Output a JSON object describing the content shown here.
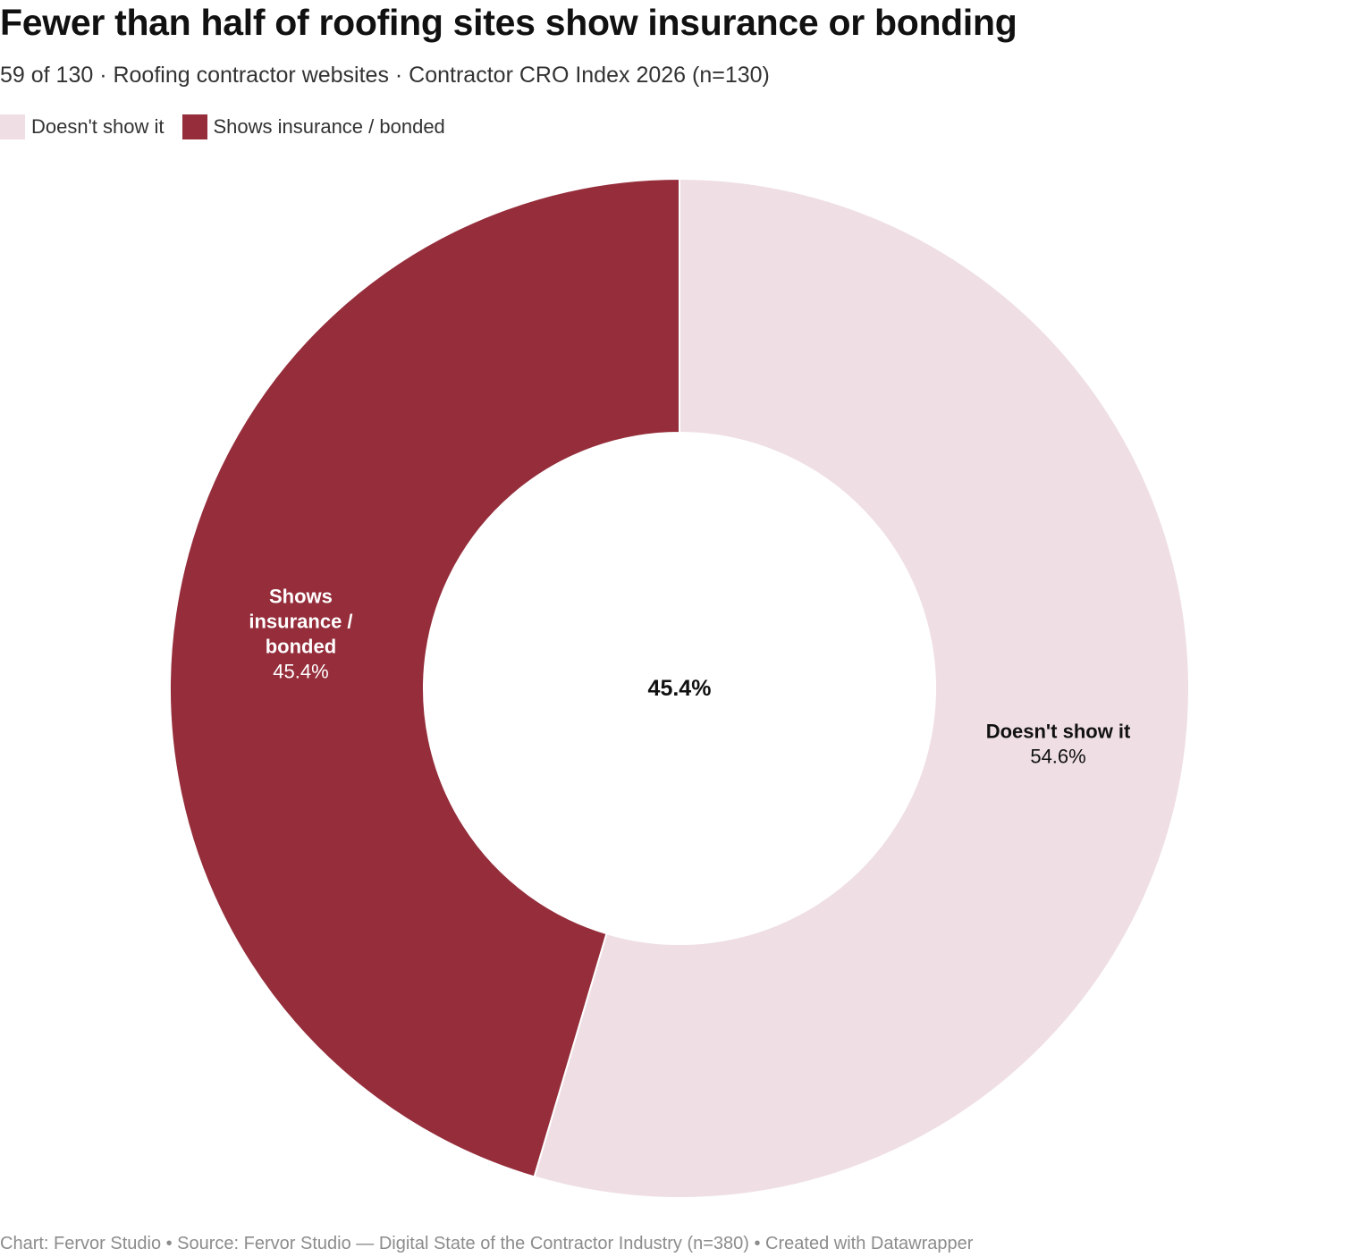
{
  "title": "Fewer than half of roofing sites show insurance or bonding",
  "subtitle": "59 of 130 · Roofing contractor websites · Contractor CRO Index 2026 (n=130)",
  "legend": [
    {
      "label": "Doesn't show it",
      "color": "#efdfe4"
    },
    {
      "label": "Shows insurance / bonded",
      "color": "#952d3b"
    }
  ],
  "footer": "Chart: Fervor Studio • Source: Fervor Studio — Digital State of the Contractor Industry (n=380) • Created with Datawrapper",
  "chart_data": {
    "type": "pie",
    "variant": "donut",
    "center_label": "45.4%",
    "slices": [
      {
        "name": "Doesn't show it",
        "value": 54.6,
        "value_label": "54.6%",
        "label_lines": [
          "Doesn't show it"
        ],
        "color": "#efdfe4",
        "text_color": "#111111"
      },
      {
        "name": "Shows insurance / bonded",
        "value": 45.4,
        "value_label": "45.4%",
        "label_lines": [
          "Shows",
          "insurance /",
          "bonded"
        ],
        "color": "#952d3b",
        "text_color": "#ffffff"
      }
    ]
  }
}
